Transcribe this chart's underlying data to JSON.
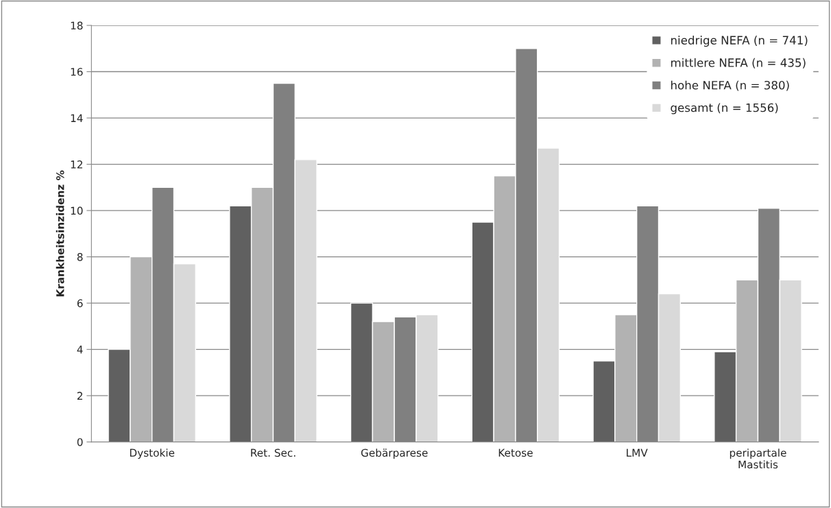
{
  "chart_data": {
    "type": "bar",
    "ylabel": "Krankheitsinzidenz %",
    "categories": [
      "Dystokie",
      "Ret. Sec.",
      "Gebärparese",
      "Ketose",
      "LMV",
      "peripartale\nMastitis"
    ],
    "series": [
      {
        "name": "niedrige NEFA (n = 741)",
        "color": "#606060",
        "values": [
          4.0,
          10.2,
          6.0,
          9.5,
          3.5,
          3.9
        ]
      },
      {
        "name": "mittlere NEFA (n = 435)",
        "color": "#b2b2b2",
        "values": [
          8.0,
          11.0,
          5.2,
          11.5,
          5.5,
          7.0
        ]
      },
      {
        "name": "hohe NEFA (n = 380)",
        "color": "#808080",
        "values": [
          11.0,
          15.5,
          5.4,
          17.0,
          10.2,
          10.1
        ]
      },
      {
        "name": "gesamt (n = 1556)",
        "color": "#d9d9d9",
        "values": [
          7.7,
          12.2,
          5.5,
          12.7,
          6.4,
          7.0
        ]
      }
    ],
    "ylim": [
      0,
      18
    ],
    "yticks": [
      0,
      2,
      4,
      6,
      8,
      10,
      12,
      14,
      16,
      18
    ],
    "grid": "y",
    "legend": "top right"
  }
}
